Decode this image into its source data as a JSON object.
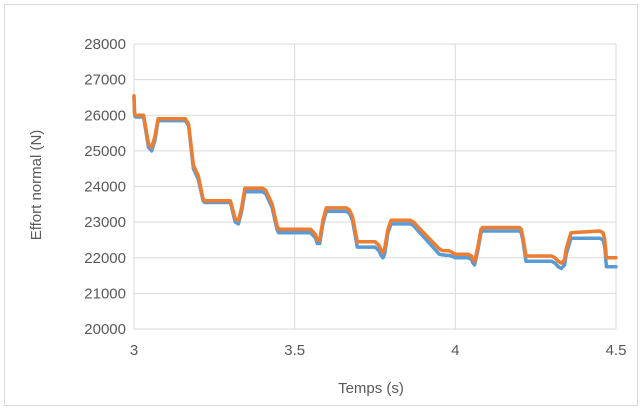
{
  "chart_data": {
    "type": "line",
    "title": "",
    "xlabel": "Temps (s)",
    "ylabel": "Effort normal (N)",
    "xlim": [
      3,
      4.5
    ],
    "ylim": [
      20000,
      28000
    ],
    "x_ticks": [
      "3",
      "3.5",
      "4",
      "4.5"
    ],
    "y_ticks": [
      "20000",
      "21000",
      "22000",
      "23000",
      "24000",
      "25000",
      "26000",
      "27000",
      "28000"
    ],
    "grid": true,
    "legend": "none",
    "series": [
      {
        "color": "#5b9bd5",
        "x": [
          3.0,
          3.002,
          3.005,
          3.03,
          3.045,
          3.055,
          3.065,
          3.075,
          3.09,
          3.1,
          3.16,
          3.17,
          3.185,
          3.2,
          3.215,
          3.22,
          3.3,
          3.315,
          3.325,
          3.335,
          3.345,
          3.355,
          3.4,
          3.41,
          3.425,
          3.43,
          3.445,
          3.45,
          3.55,
          3.565,
          3.57,
          3.578,
          3.588,
          3.598,
          3.66,
          3.67,
          3.68,
          3.695,
          3.75,
          3.762,
          3.77,
          3.775,
          3.78,
          3.79,
          3.8,
          3.85,
          3.86,
          3.87,
          3.88,
          3.95,
          3.96,
          3.965,
          3.97,
          3.98,
          3.99,
          4.0,
          4.04,
          4.05,
          4.055,
          4.06,
          4.07,
          4.08,
          4.085,
          4.09,
          4.2,
          4.205,
          4.21,
          4.22,
          4.29,
          4.3,
          4.31,
          4.315,
          4.32,
          4.33,
          4.34,
          4.345,
          4.36,
          4.45,
          4.46,
          4.465,
          4.47,
          4.5
        ],
        "values": [
          26500,
          26000,
          25950,
          25950,
          25100,
          25000,
          25300,
          25850,
          25850,
          25850,
          25850,
          25700,
          24500,
          24200,
          23600,
          23550,
          23550,
          23000,
          22950,
          23300,
          23850,
          23850,
          23850,
          23800,
          23500,
          23400,
          22800,
          22700,
          22700,
          22550,
          22400,
          22400,
          22950,
          23300,
          23300,
          23250,
          23050,
          22300,
          22300,
          22200,
          22050,
          22000,
          22100,
          22700,
          22950,
          22950,
          22950,
          22900,
          22800,
          22100,
          22080,
          22080,
          22070,
          22070,
          22040,
          22000,
          22000,
          21950,
          21850,
          21800,
          22200,
          22700,
          22750,
          22750,
          22750,
          22700,
          22500,
          21900,
          21900,
          21900,
          21850,
          21800,
          21750,
          21700,
          21800,
          22100,
          22550,
          22550,
          22500,
          22300,
          21750,
          21750
        ]
      },
      {
        "color": "#ed7d31",
        "x": [
          3.0,
          3.002,
          3.005,
          3.03,
          3.045,
          3.055,
          3.065,
          3.075,
          3.09,
          3.1,
          3.16,
          3.17,
          3.185,
          3.2,
          3.215,
          3.22,
          3.3,
          3.315,
          3.325,
          3.335,
          3.345,
          3.355,
          3.4,
          3.41,
          3.425,
          3.43,
          3.445,
          3.45,
          3.55,
          3.565,
          3.57,
          3.578,
          3.588,
          3.598,
          3.66,
          3.67,
          3.68,
          3.695,
          3.75,
          3.762,
          3.77,
          3.775,
          3.78,
          3.79,
          3.8,
          3.85,
          3.86,
          3.87,
          3.88,
          3.95,
          3.96,
          3.965,
          3.97,
          3.98,
          3.99,
          4.0,
          4.04,
          4.05,
          4.055,
          4.06,
          4.07,
          4.08,
          4.085,
          4.09,
          4.2,
          4.205,
          4.21,
          4.22,
          4.29,
          4.3,
          4.31,
          4.315,
          4.32,
          4.33,
          4.34,
          4.345,
          4.36,
          4.45,
          4.46,
          4.465,
          4.47,
          4.5
        ],
        "values": [
          26550,
          26050,
          26000,
          26000,
          25200,
          25100,
          25400,
          25900,
          25900,
          25900,
          25900,
          25750,
          24600,
          24300,
          23650,
          23600,
          23600,
          23100,
          23050,
          23400,
          23950,
          23950,
          23950,
          23900,
          23600,
          23500,
          22900,
          22800,
          22800,
          22650,
          22500,
          22500,
          23050,
          23400,
          23400,
          23350,
          23150,
          22450,
          22450,
          22350,
          22200,
          22150,
          22250,
          22800,
          23050,
          23050,
          23050,
          23000,
          22900,
          22250,
          22200,
          22200,
          22200,
          22200,
          22150,
          22100,
          22100,
          22050,
          21950,
          21900,
          22300,
          22800,
          22850,
          22850,
          22850,
          22800,
          22600,
          22050,
          22050,
          22050,
          22000,
          21950,
          21900,
          21850,
          21950,
          22250,
          22700,
          22750,
          22700,
          22500,
          22000,
          22000
        ]
      }
    ]
  }
}
